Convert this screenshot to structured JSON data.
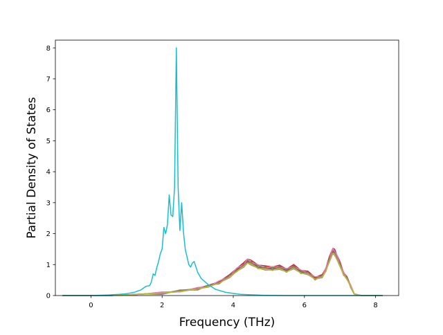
{
  "chart_data": {
    "type": "line",
    "title": "",
    "xlabel": "Frequency (THz)",
    "ylabel": "Partial Density of States",
    "xlim": [
      -1.0,
      8.65
    ],
    "ylim": [
      0,
      8.25
    ],
    "xticks": [
      0,
      2,
      4,
      6,
      8
    ],
    "yticks": [
      0,
      1,
      2,
      3,
      4,
      5,
      6,
      7,
      8
    ],
    "xtick_labels": [
      "0",
      "2",
      "4",
      "6",
      "8"
    ],
    "ytick_labels": [
      "0",
      "1",
      "2",
      "3",
      "4",
      "5",
      "6",
      "7",
      "8"
    ],
    "grid": false,
    "legend": "none",
    "base_series": {
      "x": [
        -0.8,
        0.0,
        0.5,
        1.0,
        1.5,
        2.0,
        2.5,
        3.0,
        3.3,
        3.6,
        3.9,
        4.1,
        4.3,
        4.4,
        4.5,
        4.7,
        4.9,
        5.1,
        5.3,
        5.5,
        5.7,
        5.9,
        6.1,
        6.3,
        6.5,
        6.6,
        6.7,
        6.8,
        6.85,
        6.9,
        7.0,
        7.1,
        7.2,
        7.3,
        7.4,
        7.6,
        8.2
      ],
      "y": [
        0,
        0,
        0,
        0.02,
        0.05,
        0.08,
        0.14,
        0.22,
        0.3,
        0.42,
        0.62,
        0.82,
        0.98,
        1.1,
        1.05,
        0.92,
        0.88,
        0.86,
        0.9,
        0.8,
        0.92,
        0.76,
        0.72,
        0.55,
        0.62,
        0.82,
        1.15,
        1.42,
        1.38,
        1.25,
        1.0,
        0.7,
        0.55,
        0.3,
        0.05,
        0,
        0
      ]
    },
    "series": [
      {
        "color": "#1f77b4",
        "scale": 1.0,
        "shift": 0.0
      },
      {
        "color": "#ff7f0e",
        "scale": 0.97,
        "shift": 0.02
      },
      {
        "color": "#2ca02c",
        "scale": 1.03,
        "shift": -0.02
      },
      {
        "color": "#d62728",
        "scale": 1.08,
        "shift": 0.01
      },
      {
        "color": "#9467bd",
        "scale": 0.95,
        "shift": -0.01
      },
      {
        "color": "#8c564b",
        "scale": 1.02,
        "shift": 0.03
      },
      {
        "color": "#e377c2",
        "scale": 1.05,
        "shift": -0.03
      },
      {
        "color": "#7f7f7f",
        "scale": 0.99,
        "shift": 0.04
      },
      {
        "color": "#bcbd22",
        "scale": 0.96,
        "shift": 0.0
      },
      {
        "color": "#17becf",
        "x": [
          -0.8,
          0.0,
          0.5,
          0.8,
          1.0,
          1.2,
          1.4,
          1.55,
          1.65,
          1.7,
          1.75,
          1.8,
          1.85,
          1.9,
          1.95,
          2.0,
          2.05,
          2.1,
          2.15,
          2.2,
          2.25,
          2.3,
          2.35,
          2.4,
          2.45,
          2.5,
          2.55,
          2.6,
          2.65,
          2.7,
          2.75,
          2.8,
          2.85,
          2.9,
          3.0,
          3.1,
          3.3,
          3.5,
          3.8,
          4.2,
          4.8,
          5.5,
          7.0,
          8.2
        ],
        "y": [
          0,
          0,
          0.02,
          0.04,
          0.06,
          0.1,
          0.18,
          0.3,
          0.32,
          0.45,
          0.7,
          0.65,
          0.9,
          1.1,
          1.35,
          1.5,
          2.2,
          2.0,
          2.3,
          3.25,
          2.6,
          2.55,
          3.5,
          8.0,
          3.5,
          2.1,
          3.0,
          2.05,
          1.5,
          1.25,
          1.0,
          0.92,
          1.05,
          1.1,
          0.75,
          0.55,
          0.35,
          0.2,
          0.1,
          0.04,
          0.01,
          0,
          0,
          0
        ]
      }
    ]
  }
}
